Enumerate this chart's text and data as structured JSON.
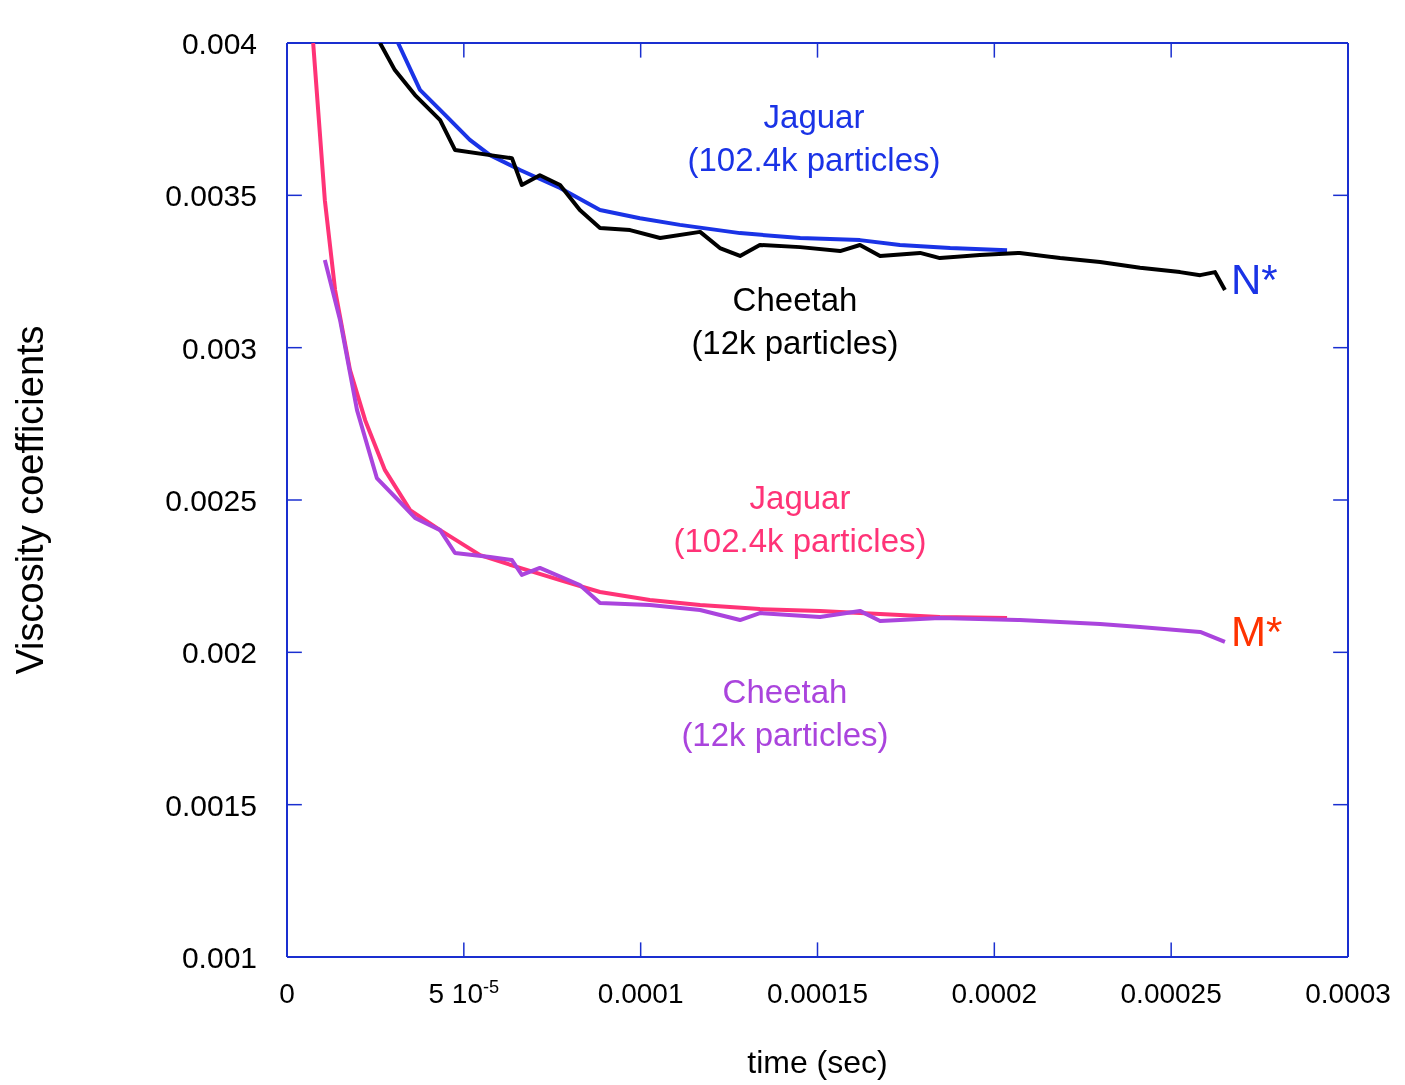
{
  "chart_data": {
    "type": "line",
    "xlabel": "time (sec)",
    "ylabel": "Viscosity coefficients",
    "xlim": [
      0,
      0.0003
    ],
    "xticks": [
      0,
      {
        "value": 5e-05,
        "label": "5 10$^{-5}$"
      },
      0.0001,
      0.00015,
      0.0002,
      0.00025,
      0.0003
    ],
    "ylim": [
      0.001,
      0.004
    ],
    "yticks": [
      0.001,
      0.0015,
      0.002,
      0.0025,
      0.003,
      0.0035,
      0.004
    ],
    "series": [
      {
        "name": "Jaguar\n(102.4k particles)",
        "color": "#1a33e6",
        "x": [
          3.14e-05,
          3.76e-05,
          4.47e-05,
          5.17e-05,
          5.74e-05,
          6.59e-05,
          7.72e-05,
          8.85e-05,
          9.98e-05,
          0.0001111,
          0.0001281,
          0.0001451,
          0.000162,
          0.0001733,
          0.0001875,
          0.0002036
        ],
        "values": [
          0.004,
          0.003846,
          0.003764,
          0.003682,
          0.003632,
          0.003583,
          0.003524,
          0.003452,
          0.003425,
          0.003403,
          0.003376,
          0.00336,
          0.003353,
          0.003337,
          0.003327,
          0.00332
        ]
      },
      {
        "name": "Cheetah\n(12k particles)",
        "color": "#000000",
        "x": [
          2.63e-05,
          3.05e-05,
          3.62e-05,
          4.33e-05,
          4.75e-05,
          5.74e-05,
          6.36e-05,
          6.64e-05,
          7.15e-05,
          7.72e-05,
          8.28e-05,
          8.85e-05,
          9.7e-05,
          0.0001055,
          0.0001168,
          0.0001224,
          0.0001281,
          0.0001337,
          0.0001451,
          0.0001564,
          0.000162,
          0.0001677,
          0.000179,
          0.0001846,
          0.0001959,
          0.0002072,
          0.0002186,
          0.0002299,
          0.0002412,
          0.0002525,
          0.0002582,
          0.0002624,
          0.0002652
        ],
        "values": [
          0.004,
          0.003911,
          0.003829,
          0.003747,
          0.003649,
          0.003632,
          0.003622,
          0.003534,
          0.003566,
          0.003534,
          0.003452,
          0.003393,
          0.003386,
          0.00336,
          0.00338,
          0.003327,
          0.003301,
          0.003337,
          0.00333,
          0.003317,
          0.003337,
          0.003301,
          0.003311,
          0.003294,
          0.003304,
          0.003311,
          0.003294,
          0.003281,
          0.003262,
          0.003248,
          0.003238,
          0.003248,
          0.003189
        ]
      },
      {
        "name": "Jaguar\n(102.4k particles)",
        "color": "#ff3377",
        "x": [
          7.4e-06,
          1.07e-05,
          1.36e-05,
          1.78e-05,
          2.21e-05,
          2.77e-05,
          3.48e-05,
          4.33e-05,
          5.46e-05,
          6.59e-05,
          7.72e-05,
          8.85e-05,
          0.0001026,
          0.0001168,
          0.0001337,
          0.0001507,
          0.0001677,
          0.0001846,
          0.0002036
        ],
        "values": [
          0.004,
          0.003484,
          0.003189,
          0.002927,
          0.002762,
          0.002598,
          0.002467,
          0.002401,
          0.002319,
          0.002277,
          0.002237,
          0.002198,
          0.002172,
          0.002155,
          0.002142,
          0.002136,
          0.002126,
          0.002116,
          0.002113
        ]
      },
      {
        "name": "Cheetah\n(12k particles)",
        "color": "#aa44dd",
        "x": [
          1.07e-05,
          1.5e-05,
          1.98e-05,
          2.54e-05,
          3.14e-05,
          3.62e-05,
          4.33e-05,
          4.75e-05,
          5.74e-05,
          6.36e-05,
          6.64e-05,
          7.15e-05,
          8.28e-05,
          8.85e-05,
          0.0001026,
          0.0001168,
          0.0001281,
          0.0001337,
          0.0001507,
          0.000162,
          0.0001677,
          0.0001846,
          0.0002072,
          0.0002299,
          0.0002412,
          0.0002582,
          0.0002652
        ],
        "values": [
          0.003288,
          0.003091,
          0.002795,
          0.002572,
          0.0025,
          0.002441,
          0.002401,
          0.002326,
          0.002313,
          0.002303,
          0.002254,
          0.002277,
          0.002221,
          0.002162,
          0.002155,
          0.002139,
          0.002106,
          0.002129,
          0.002116,
          0.002136,
          0.002103,
          0.002113,
          0.002106,
          0.002093,
          0.002083,
          0.002067,
          0.002034
        ]
      }
    ],
    "annotations": [
      {
        "text": "N*",
        "x": 0.0002652,
        "y": 0.003189
      },
      {
        "text": "M*",
        "x": 0.0002652,
        "y": 0.002034
      }
    ]
  }
}
